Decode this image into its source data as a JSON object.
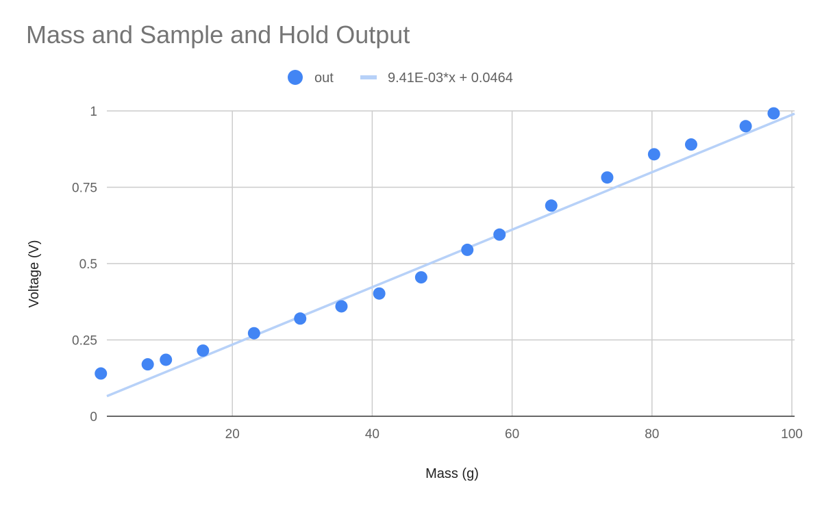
{
  "chart_data": {
    "type": "scatter",
    "title": "Mass and Sample and Hold Output",
    "xlabel": "Mass (g)",
    "ylabel": "Voltage (V)",
    "xlim": [
      0,
      100
    ],
    "ylim": [
      0,
      1
    ],
    "x_ticks": [
      20,
      40,
      60,
      80,
      100
    ],
    "x_tick_labels": [
      "20",
      "40",
      "60",
      "80",
      "100"
    ],
    "y_ticks": [
      0,
      0.25,
      0.5,
      0.75,
      1
    ],
    "y_tick_labels": [
      "0",
      "0.25",
      "0.5",
      "0.75",
      "1"
    ],
    "grid": true,
    "legend_position": "top",
    "series": [
      {
        "name": "out",
        "color": "#4285f4",
        "points": [
          {
            "x": 1.2,
            "y": 0.14
          },
          {
            "x": 7.9,
            "y": 0.17
          },
          {
            "x": 10.5,
            "y": 0.185
          },
          {
            "x": 15.8,
            "y": 0.215
          },
          {
            "x": 23.1,
            "y": 0.272
          },
          {
            "x": 29.7,
            "y": 0.32
          },
          {
            "x": 35.6,
            "y": 0.36
          },
          {
            "x": 41.0,
            "y": 0.402
          },
          {
            "x": 47.0,
            "y": 0.455
          },
          {
            "x": 53.6,
            "y": 0.545
          },
          {
            "x": 58.2,
            "y": 0.595
          },
          {
            "x": 65.6,
            "y": 0.69
          },
          {
            "x": 73.6,
            "y": 0.782
          },
          {
            "x": 80.3,
            "y": 0.858
          },
          {
            "x": 85.6,
            "y": 0.89
          },
          {
            "x": 93.4,
            "y": 0.95
          },
          {
            "x": 97.4,
            "y": 0.992
          }
        ]
      }
    ],
    "trendline": {
      "label": "9.41E-03*x + 0.0464",
      "slope": 0.00941,
      "intercept": 0.0464,
      "color": "#b7d1f8"
    }
  }
}
